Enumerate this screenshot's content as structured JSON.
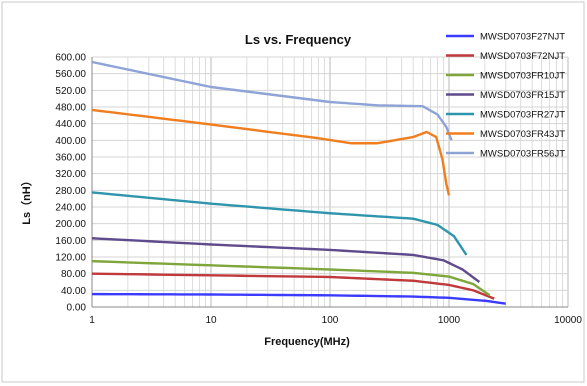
{
  "chart_data": {
    "type": "line",
    "title": "Ls vs. Frequency",
    "xlabel": "Frequency(MHz)",
    "ylabel": "Ls（nH）",
    "x_scale": "log",
    "xlim": [
      1,
      10000
    ],
    "ylim": [
      0,
      600
    ],
    "grid": true,
    "legend_position": "top-right",
    "x_ticks": [
      {
        "value": 1,
        "label": "1"
      },
      {
        "value": 10,
        "label": "10"
      },
      {
        "value": 100,
        "label": "100"
      },
      {
        "value": 1000,
        "label": "1000"
      },
      {
        "value": 10000,
        "label": "10000"
      }
    ],
    "y_ticks": [
      {
        "value": 0,
        "label": "0.00"
      },
      {
        "value": 40,
        "label": "40.00"
      },
      {
        "value": 80,
        "label": "80.00"
      },
      {
        "value": 120,
        "label": "120.00"
      },
      {
        "value": 160,
        "label": "160.00"
      },
      {
        "value": 200,
        "label": "200.00"
      },
      {
        "value": 240,
        "label": "240.00"
      },
      {
        "value": 280,
        "label": "280.00"
      },
      {
        "value": 320,
        "label": "320.00"
      },
      {
        "value": 360,
        "label": "360.00"
      },
      {
        "value": 400,
        "label": "400.00"
      },
      {
        "value": 440,
        "label": "440.00"
      },
      {
        "value": 480,
        "label": "480.00"
      },
      {
        "value": 520,
        "label": "520.00"
      },
      {
        "value": 560,
        "label": "560.00"
      },
      {
        "value": 600,
        "label": "600.00"
      }
    ],
    "series": [
      {
        "name": "MWSD0703F27NJT",
        "color": "#3b3bff",
        "points": [
          [
            1,
            31
          ],
          [
            10,
            30
          ],
          [
            100,
            28
          ],
          [
            500,
            25
          ],
          [
            1000,
            22
          ],
          [
            2000,
            15
          ],
          [
            3000,
            8
          ]
        ]
      },
      {
        "name": "MWSD0703F72NJT",
        "color": "#c0393b",
        "points": [
          [
            1,
            80
          ],
          [
            10,
            76
          ],
          [
            100,
            72
          ],
          [
            500,
            63
          ],
          [
            1000,
            53
          ],
          [
            1600,
            40
          ],
          [
            2400,
            20
          ]
        ]
      },
      {
        "name": "MWSD0703FR10JT",
        "color": "#7ea63a",
        "points": [
          [
            1,
            110
          ],
          [
            10,
            100
          ],
          [
            100,
            90
          ],
          [
            500,
            82
          ],
          [
            1000,
            73
          ],
          [
            1600,
            55
          ],
          [
            2200,
            28
          ]
        ]
      },
      {
        "name": "MWSD0703FR15JT",
        "color": "#5f4a8b",
        "points": [
          [
            1,
            165
          ],
          [
            10,
            150
          ],
          [
            100,
            137
          ],
          [
            500,
            125
          ],
          [
            900,
            112
          ],
          [
            1300,
            90
          ],
          [
            1800,
            60
          ]
        ]
      },
      {
        "name": "MWSD0703FR27JT",
        "color": "#2e95ad",
        "points": [
          [
            1,
            275
          ],
          [
            10,
            248
          ],
          [
            100,
            225
          ],
          [
            500,
            212
          ],
          [
            800,
            197
          ],
          [
            1100,
            170
          ],
          [
            1400,
            125
          ]
        ]
      },
      {
        "name": "MWSD0703FR43JT",
        "color": "#f07d1e",
        "points": [
          [
            1,
            473
          ],
          [
            10,
            438
          ],
          [
            80,
            405
          ],
          [
            150,
            393
          ],
          [
            250,
            393
          ],
          [
            500,
            408
          ],
          [
            650,
            420
          ],
          [
            780,
            408
          ],
          [
            880,
            355
          ],
          [
            950,
            295
          ],
          [
            1000,
            268
          ]
        ]
      },
      {
        "name": "MWSD0703FR56JT",
        "color": "#8ea4d6",
        "points": [
          [
            1,
            588
          ],
          [
            10,
            528
          ],
          [
            100,
            492
          ],
          [
            250,
            484
          ],
          [
            600,
            482
          ],
          [
            800,
            462
          ],
          [
            950,
            432
          ],
          [
            1050,
            400
          ]
        ]
      }
    ]
  }
}
